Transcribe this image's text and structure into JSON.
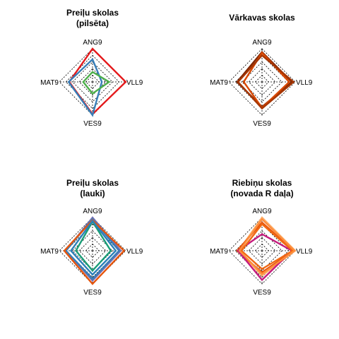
{
  "axes": [
    "ANG9",
    "VLL9",
    "VES9",
    "MAT9"
  ],
  "chart_data": [
    {
      "type": "radar",
      "title_lines": [
        "Preiļu skolas",
        "(pilsēta)"
      ],
      "axes": [
        "ANG9",
        "VLL9",
        "VES9",
        "MAT9"
      ],
      "rlim": [
        0,
        1
      ],
      "series": [
        {
          "color": "#e41a1c",
          "values": [
            1.0,
            1.0,
            0.97,
            0.7
          ]
        },
        {
          "color": "#377eb8",
          "values": [
            0.68,
            0.28,
            1.0,
            0.72
          ]
        },
        {
          "color": "#4daf4a",
          "values": [
            0.3,
            0.5,
            0.35,
            0.28
          ]
        }
      ]
    },
    {
      "type": "radar",
      "title_lines": [
        "Vārkavas skolas"
      ],
      "axes": [
        "ANG9",
        "VLL9",
        "VES9",
        "MAT9"
      ],
      "rlim": [
        0,
        1
      ],
      "series": [
        {
          "color": "#7f2704",
          "values": [
            0.9,
            0.9,
            0.75,
            0.75
          ]
        },
        {
          "color": "#d94801",
          "values": [
            0.88,
            0.82,
            0.78,
            0.55
          ]
        },
        {
          "color": "#a63603",
          "values": [
            0.8,
            0.95,
            0.8,
            0.72
          ]
        }
      ]
    },
    {
      "type": "radar",
      "title_lines": [
        "Preiļu skolas",
        "(lauki)"
      ],
      "axes": [
        "ANG9",
        "VLL9",
        "VES9",
        "MAT9"
      ],
      "rlim": [
        0,
        1
      ],
      "series": [
        {
          "color": "#7570b3",
          "values": [
            1.0,
            0.85,
            0.9,
            0.8
          ]
        },
        {
          "color": "#377eb8",
          "values": [
            0.95,
            0.8,
            0.85,
            0.8
          ]
        },
        {
          "color": "#e6550d",
          "values": [
            0.92,
            0.95,
            1.0,
            0.85
          ]
        },
        {
          "color": "#1b9e77",
          "values": [
            0.88,
            0.55,
            0.6,
            0.5
          ]
        },
        {
          "color": "#2c7fb8",
          "values": [
            0.9,
            0.7,
            0.72,
            0.65
          ]
        }
      ]
    },
    {
      "type": "radar",
      "title_lines": [
        "Riebiņu skolas",
        "(novada R daļa)"
      ],
      "axes": [
        "ANG9",
        "VLL9",
        "VES9",
        "MAT9"
      ],
      "rlim": [
        0,
        1
      ],
      "series": [
        {
          "color": "#fdae6b",
          "values": [
            1.0,
            1.0,
            0.75,
            0.7
          ]
        },
        {
          "color": "#e6550d",
          "values": [
            0.85,
            0.95,
            0.65,
            0.75
          ]
        },
        {
          "color": "#c51b7d",
          "values": [
            0.5,
            0.9,
            0.88,
            0.72
          ]
        },
        {
          "color": "#f16913",
          "values": [
            0.8,
            0.92,
            0.55,
            0.62
          ]
        },
        {
          "color": "#fd8d3c",
          "values": [
            0.95,
            0.98,
            0.7,
            0.68
          ]
        }
      ]
    }
  ]
}
